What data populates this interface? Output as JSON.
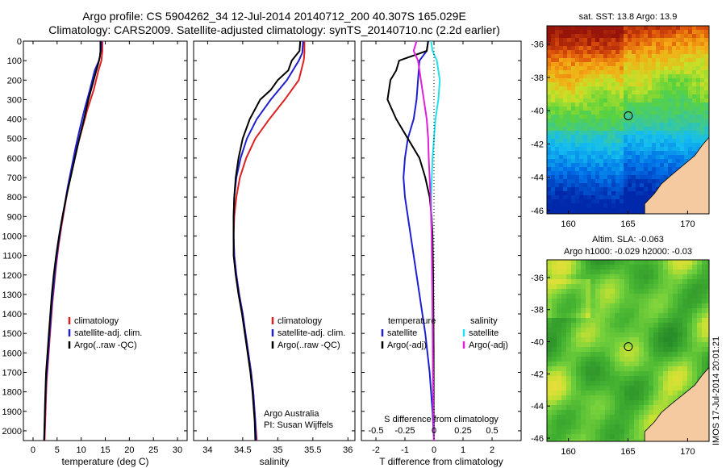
{
  "titles": {
    "line1": "Argo profile: CS 5904262_34 12-Jul-2014 20140712_200 40.307S 165.029E",
    "line2": "Climatology: CARS2009. Satellite-adjusted climatology: synTS_20140710.nc (2.2d earlier)"
  },
  "side_text": "IMOS 17-Jul-2014 20:01:21",
  "colors": {
    "climatology": "#e02020",
    "satellite": "#1f1fd0",
    "argo": "#000000",
    "salinity_satellite": "#22e0ee",
    "salinity_argo": "#e020d8"
  },
  "chart_data": [
    {
      "type": "line",
      "id": "temperature",
      "xlabel": "temperature (deg C)",
      "ylabel": "",
      "xlim": [
        -2,
        32
      ],
      "ylim": [
        2050,
        0
      ],
      "xticks": [
        0,
        5,
        10,
        15,
        20,
        25,
        30
      ],
      "yticks": [
        0,
        100,
        200,
        300,
        400,
        500,
        600,
        700,
        800,
        900,
        1000,
        1100,
        1200,
        1300,
        1400,
        1500,
        1600,
        1700,
        1800,
        1900,
        2000
      ],
      "legend": [
        "climatology",
        "satellite-adj. clim.",
        "Argo(..raw -QC)"
      ],
      "legend_placement": "lower-center",
      "series": [
        {
          "name": "climatology",
          "color": "#e02020",
          "x": [
            14.4,
            14.4,
            14.2,
            13.6,
            12.6,
            11.3,
            10.2,
            9.1,
            8.2,
            7.3,
            6.6,
            5.9,
            5.3,
            4.8,
            4.4,
            4.0,
            3.7,
            3.4,
            3.1,
            2.8,
            2.6,
            2.4
          ],
          "y": [
            0,
            50,
            100,
            150,
            250,
            350,
            450,
            550,
            650,
            750,
            850,
            950,
            1050,
            1150,
            1250,
            1350,
            1450,
            1550,
            1650,
            1750,
            1900,
            2050
          ]
        },
        {
          "name": "satellite-adj. clim.",
          "color": "#1f1fd0",
          "x": [
            14.2,
            14.1,
            13.7,
            12.8,
            11.8,
            10.7,
            9.7,
            8.8,
            8.0,
            7.2,
            6.5,
            5.8,
            5.2,
            4.7,
            4.3,
            3.9,
            3.6,
            3.3,
            3.0,
            2.7,
            2.5,
            2.3
          ],
          "y": [
            0,
            50,
            100,
            150,
            250,
            350,
            450,
            550,
            650,
            750,
            850,
            950,
            1050,
            1150,
            1250,
            1350,
            1450,
            1550,
            1650,
            1750,
            1900,
            2050
          ]
        },
        {
          "name": "Argo(..raw -QC)",
          "color": "#000000",
          "x": [
            14.0,
            14.0,
            13.9,
            13.6,
            12.6,
            11.5,
            10.6,
            9.6,
            8.7,
            7.8,
            6.9,
            6.1,
            5.4,
            4.8,
            4.3,
            3.9,
            3.6,
            3.3,
            3.0,
            2.7,
            2.5,
            2.3
          ],
          "y": [
            0,
            50,
            80,
            110,
            200,
            300,
            400,
            500,
            600,
            700,
            800,
            900,
            1000,
            1100,
            1200,
            1300,
            1400,
            1500,
            1600,
            1700,
            1850,
            2050
          ]
        }
      ]
    },
    {
      "type": "line",
      "id": "salinity",
      "xlabel": "salinity",
      "ylabel": "",
      "xlim": [
        33.8,
        36.1
      ],
      "ylim": [
        2050,
        0
      ],
      "xticks": [
        34,
        34.5,
        35,
        35.5,
        36
      ],
      "xticklabels": [
        "34",
        "34.5",
        "35",
        "35.5",
        "36"
      ],
      "legend": [
        "climatology",
        "satellite-adj. clim.",
        "Argo(..raw -QC)"
      ],
      "legend_placement": "lower-right",
      "annotations": [
        "Argo Australia",
        "PI: Susan Wijffels"
      ],
      "series": [
        {
          "name": "climatology",
          "color": "#e02020",
          "x": [
            35.38,
            35.38,
            35.37,
            35.3,
            35.1,
            34.88,
            34.68,
            34.55,
            34.46,
            34.41,
            34.38,
            34.37,
            34.38,
            34.41,
            34.45,
            34.5,
            34.54,
            34.58,
            34.62,
            34.65,
            34.68,
            34.7
          ],
          "y": [
            0,
            60,
            100,
            200,
            300,
            400,
            500,
            600,
            700,
            800,
            900,
            1000,
            1100,
            1200,
            1300,
            1400,
            1500,
            1600,
            1700,
            1800,
            1950,
            2050
          ]
        },
        {
          "name": "satellite-adj. clim.",
          "color": "#1f1fd0",
          "x": [
            35.36,
            35.35,
            35.3,
            35.13,
            34.9,
            34.7,
            34.56,
            34.47,
            34.41,
            34.38,
            34.37,
            34.37,
            34.38,
            34.41,
            34.45,
            34.5,
            34.54,
            34.58,
            34.62,
            34.65,
            34.68,
            34.69
          ],
          "y": [
            0,
            60,
            100,
            200,
            300,
            400,
            500,
            600,
            700,
            800,
            900,
            1000,
            1100,
            1200,
            1300,
            1400,
            1500,
            1600,
            1700,
            1800,
            1950,
            2050
          ]
        },
        {
          "name": "Argo(..raw -QC)",
          "color": "#000000",
          "x": [
            35.32,
            35.31,
            35.2,
            35.15,
            35.0,
            34.9,
            34.75,
            34.6,
            34.5,
            34.44,
            34.4,
            34.38,
            34.37,
            34.37,
            34.37,
            34.4,
            34.44,
            34.49,
            34.53,
            34.57,
            34.61,
            34.64,
            34.67,
            34.68
          ],
          "y": [
            0,
            50,
            100,
            150,
            200,
            250,
            300,
            400,
            500,
            600,
            700,
            800,
            900,
            1000,
            1100,
            1200,
            1300,
            1400,
            1500,
            1600,
            1700,
            1800,
            1950,
            2050
          ]
        }
      ]
    },
    {
      "type": "line",
      "id": "difference",
      "xlabel": "T difference from climatology",
      "ylabel": "",
      "secondary_xlabel": "S difference from climatology",
      "xlim": [
        -2.5,
        3.0
      ],
      "ylim": [
        2050,
        0
      ],
      "xticks": [
        -2,
        -1,
        0,
        1,
        2
      ],
      "xticklabels": [
        "-2",
        "-1",
        "0",
        "1",
        "2"
      ],
      "secondary_xticklabels": [
        "-0.5",
        "-0.25",
        "0",
        "0.25",
        "0.5"
      ],
      "legend_left": [
        "temperature",
        "satellite",
        "Argo(-adj)"
      ],
      "legend_right": [
        "salinity",
        "satellite",
        "Argo(-adj)"
      ],
      "legend_placement": "lower-center",
      "series": [
        {
          "name": "satellite",
          "color": "#1f1fd0",
          "x": [
            -0.2,
            -0.25,
            -0.5,
            -0.55,
            -0.6,
            -0.7,
            -0.9,
            -1.0,
            -1.05,
            -1.0,
            -0.9,
            -0.8,
            -0.7,
            -0.5,
            -0.3,
            -0.15,
            -0.05,
            0
          ],
          "y": [
            0,
            50,
            100,
            200,
            300,
            400,
            500,
            600,
            700,
            800,
            900,
            1000,
            1100,
            1300,
            1500,
            1700,
            1900,
            2050
          ]
        },
        {
          "name": "Argo(-adj)",
          "color": "#000000",
          "x": [
            -0.2,
            -0.25,
            -1.2,
            -1.3,
            -1.5,
            -1.6,
            -1.3,
            -0.9,
            -0.5,
            -0.3,
            -0.15,
            -0.08,
            -0.05,
            -0.03,
            -0.02,
            -0.01,
            -0.01,
            0
          ],
          "y": [
            0,
            50,
            100,
            150,
            200,
            300,
            400,
            500,
            600,
            700,
            800,
            900,
            1000,
            1200,
            1400,
            1600,
            1800,
            2050
          ]
        },
        {
          "name": "salinity satellite",
          "color": "#22e0ee",
          "x": [
            -0.1,
            -0.05,
            0.1,
            0.2,
            0.15,
            0.05,
            0.0,
            -0.05,
            -0.1,
            -0.08,
            -0.05,
            -0.03,
            0
          ],
          "y": [
            0,
            50,
            100,
            200,
            300,
            400,
            500,
            600,
            800,
            1000,
            1400,
            1800,
            2050
          ]
        },
        {
          "name": "salinity Argo(-adj)",
          "color": "#e020d8",
          "x": [
            -0.6,
            -0.7,
            -0.55,
            -0.45,
            -0.35,
            -0.25,
            -0.2,
            -0.18,
            -0.12,
            -0.08,
            -0.05,
            -0.03,
            0
          ],
          "y": [
            0,
            50,
            100,
            200,
            300,
            400,
            500,
            600,
            800,
            1000,
            1400,
            1800,
            2050
          ]
        }
      ]
    },
    {
      "type": "heatmap",
      "id": "sst-map",
      "title": "sat. SST: 13.8  Argo: 13.9",
      "xlim": [
        158.2,
        171.8
      ],
      "ylim": [
        -46.2,
        -34.9
      ],
      "xticks": [
        160,
        165,
        170
      ],
      "yticks": [
        -36,
        -38,
        -40,
        -42,
        -44,
        -46
      ],
      "marker": {
        "lon": 165.029,
        "lat": -40.307
      },
      "land_color": "#f5caa0"
    },
    {
      "type": "heatmap",
      "id": "sla-map",
      "title": "Altim. SLA: -0.063",
      "subtitle": "Argo h1000: -0.029 h2000: -0.03",
      "xlim": [
        158.2,
        171.8
      ],
      "ylim": [
        -46.2,
        -34.9
      ],
      "xticks": [
        160,
        165,
        170
      ],
      "yticks": [
        -36,
        -38,
        -40,
        -42,
        -44,
        -46
      ],
      "marker": {
        "lon": 165.029,
        "lat": -40.307
      },
      "land_color": "#f5caa0"
    }
  ]
}
